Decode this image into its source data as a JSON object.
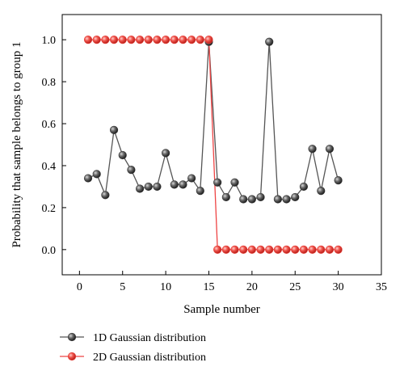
{
  "chart_data": {
    "type": "line",
    "title": "",
    "xlabel": "Sample number",
    "ylabel": "Probability that sample belongs to group 1",
    "xlim": [
      -2,
      35
    ],
    "ylim": [
      -0.12,
      1.12
    ],
    "x_ticks": [
      0,
      5,
      10,
      15,
      20,
      25,
      30,
      35
    ],
    "y_ticks": [
      0.0,
      0.2,
      0.4,
      0.6,
      0.8,
      1.0
    ],
    "x_tick_labels": [
      "0",
      "5",
      "10",
      "15",
      "20",
      "25",
      "30",
      "35"
    ],
    "y_tick_labels": [
      "0.0",
      "0.2",
      "0.4",
      "0.6",
      "0.8",
      "1.0"
    ],
    "grid": false,
    "legend_position": "bottom-left, below axes",
    "x": [
      1,
      2,
      3,
      4,
      5,
      6,
      7,
      8,
      9,
      10,
      11,
      12,
      13,
      14,
      15,
      16,
      17,
      18,
      19,
      20,
      21,
      22,
      23,
      24,
      25,
      26,
      27,
      28,
      29,
      30
    ],
    "series": [
      {
        "name": "1D Gaussian distribution",
        "color": "#3a3a3a",
        "line_color": "#555555",
        "values": [
          0.34,
          0.36,
          0.26,
          0.57,
          0.45,
          0.38,
          0.29,
          0.3,
          0.3,
          0.46,
          0.31,
          0.31,
          0.34,
          0.28,
          0.99,
          0.32,
          0.25,
          0.32,
          0.24,
          0.24,
          0.25,
          0.99,
          0.24,
          0.24,
          0.25,
          0.3,
          0.48,
          0.28,
          0.48,
          0.33
        ]
      },
      {
        "name": "2D Gaussian distribution",
        "color": "#e8403a",
        "line_color": "#ee4444",
        "values": [
          1.0,
          1.0,
          1.0,
          1.0,
          1.0,
          1.0,
          1.0,
          1.0,
          1.0,
          1.0,
          1.0,
          1.0,
          1.0,
          1.0,
          1.0,
          0.0,
          0.0,
          0.0,
          0.0,
          0.0,
          0.0,
          0.0,
          0.0,
          0.0,
          0.0,
          0.0,
          0.0,
          0.0,
          0.0,
          0.0
        ]
      }
    ]
  }
}
